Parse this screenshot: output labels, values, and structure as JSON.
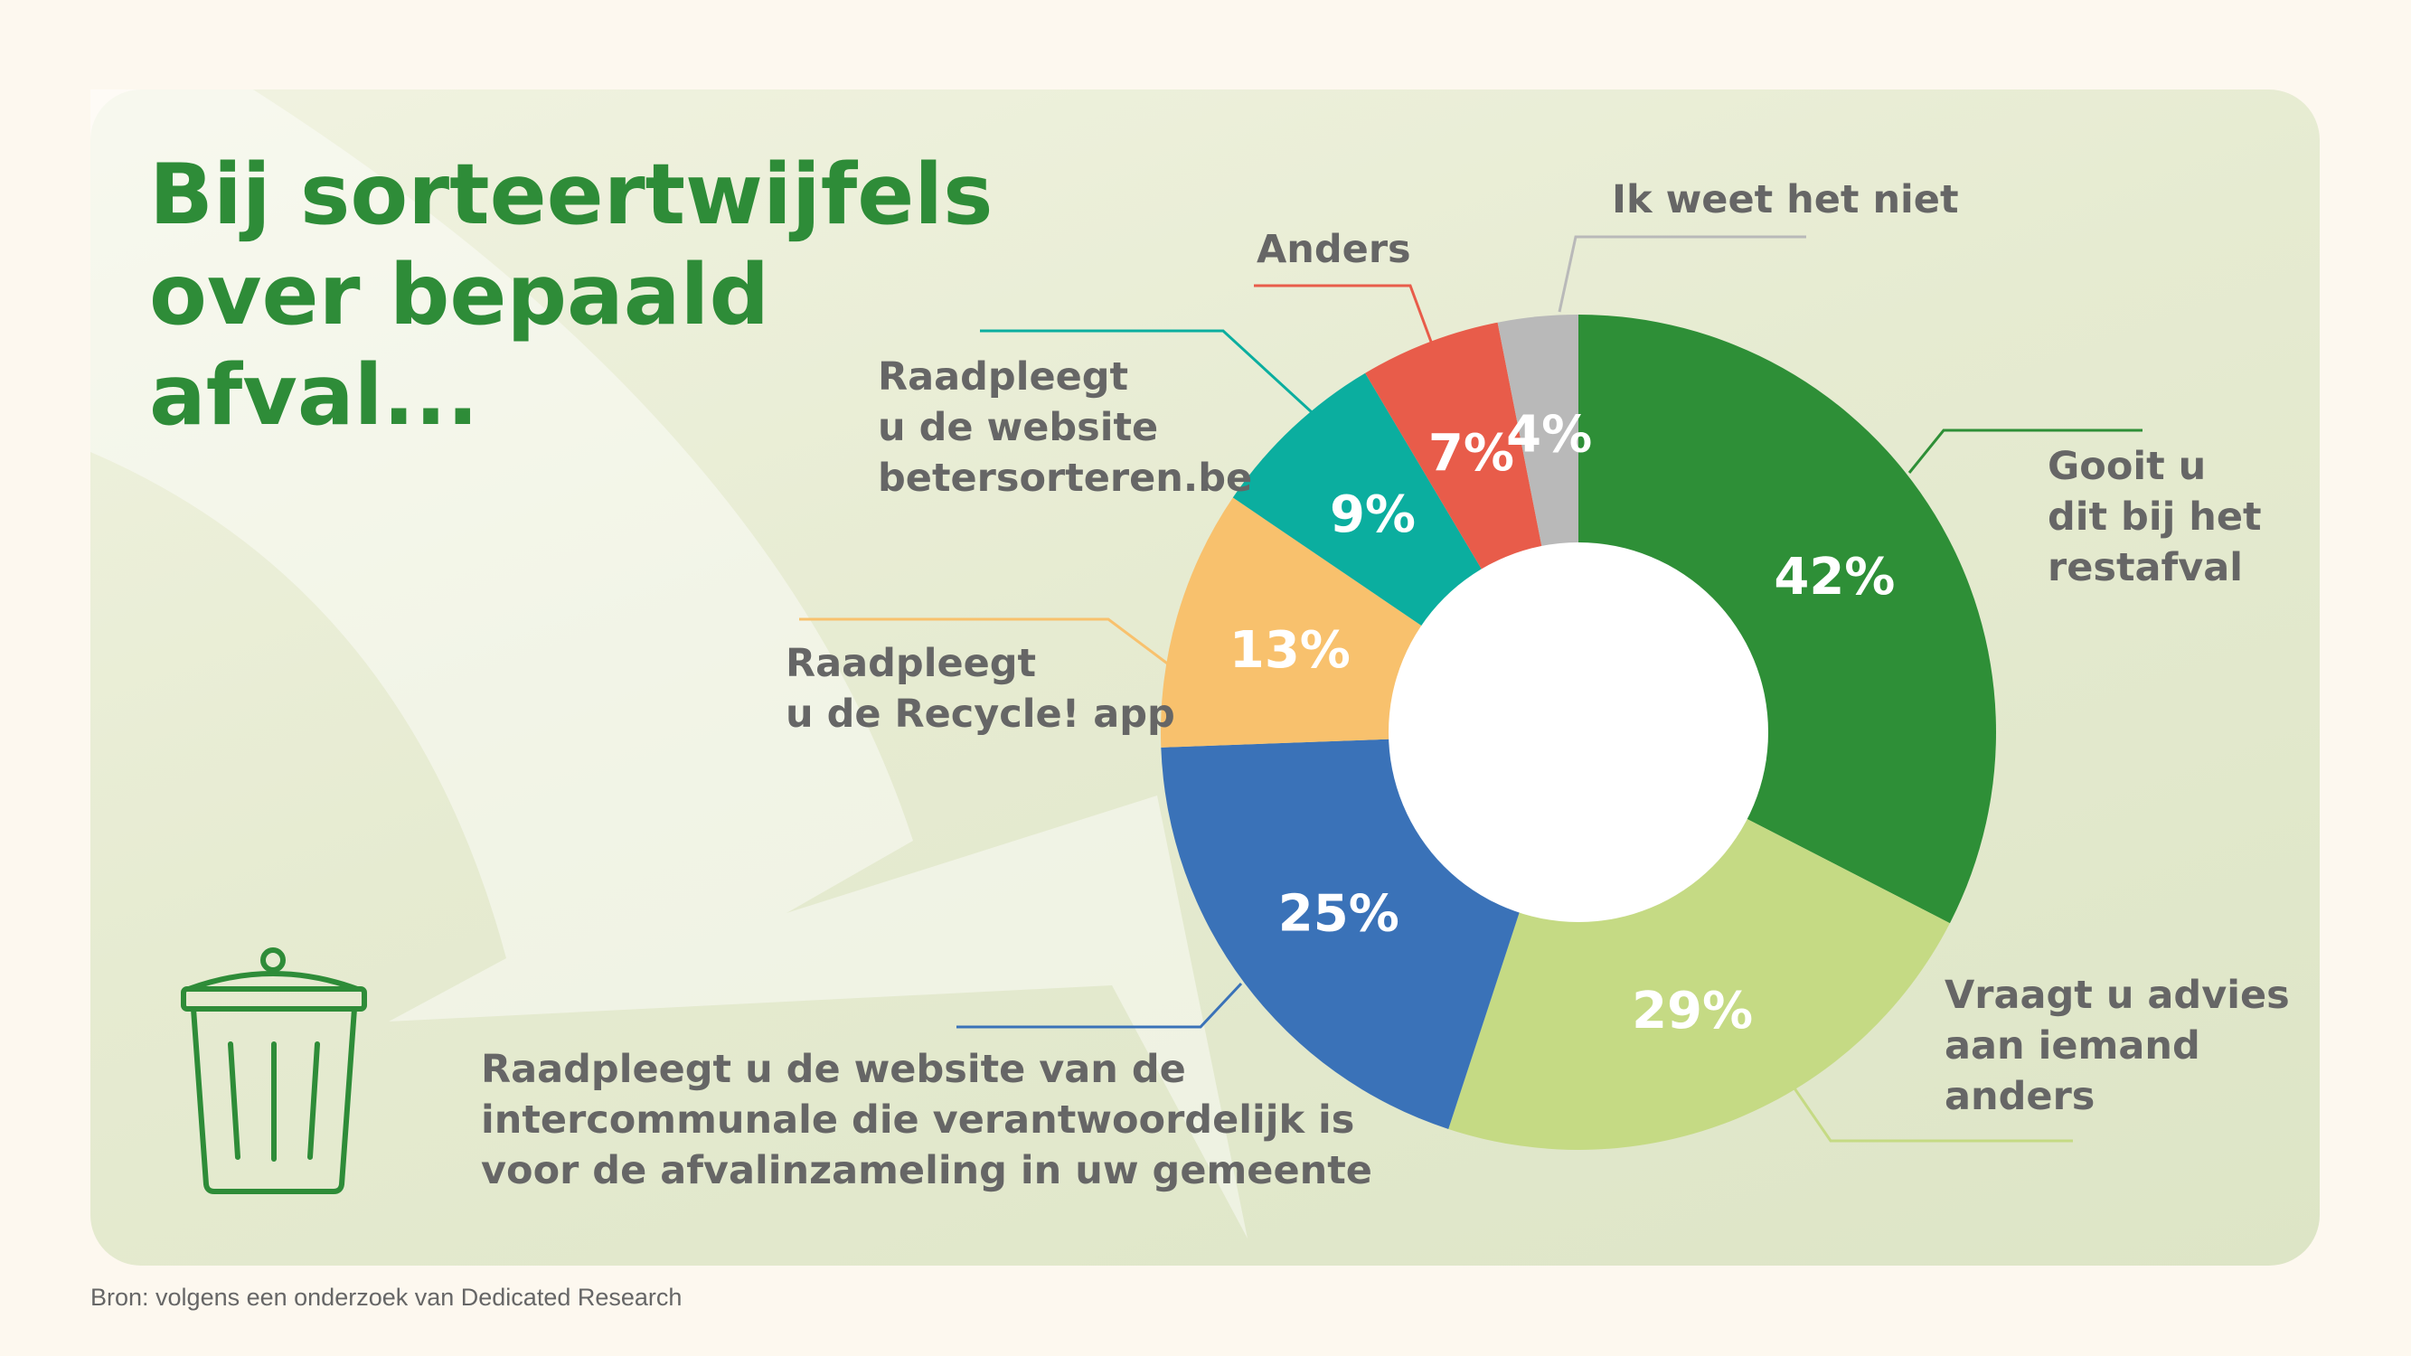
{
  "title": [
    "Bij sorteertwijfels",
    "over bepaald",
    "afval..."
  ],
  "source": "Bron: volgens een onderzoek van Dedicated Research",
  "chart_data": {
    "type": "donut",
    "start_angle_deg": 0,
    "direction": "clockwise",
    "slices": [
      {
        "value": 42,
        "value_label": "42%",
        "label_lines": [
          "Gooit u",
          "dit bij het",
          "restafval"
        ],
        "color": "#2e8f37",
        "value_text_color": "#ffffff"
      },
      {
        "value": 29,
        "value_label": "29%",
        "label_lines": [
          "Vraagt u advies",
          "aan iemand",
          "anders"
        ],
        "color": "#c5da84",
        "value_text_color": "#ffffff"
      },
      {
        "value": 25,
        "value_label": "25%",
        "label_lines": [
          "Raadpleegt u de website van de",
          "intercommunale die verantwoordelijk is",
          "voor de afvalinzameling in uw gemeente"
        ],
        "color": "#3a72b8",
        "value_text_color": "#ffffff"
      },
      {
        "value": 13,
        "value_label": "13%",
        "label_lines": [
          "Raadpleegt",
          "u de Recycle! app"
        ],
        "color": "#f8c16d",
        "value_text_color": "#ffffff"
      },
      {
        "value": 9,
        "value_label": "9%",
        "label_lines": [
          "Raadpleegt",
          "u de website",
          "betersorteren.be"
        ],
        "color": "#0bae9f",
        "value_text_color": "#ffffff"
      },
      {
        "value": 7,
        "value_label": "7%",
        "label_lines": [
          "Anders"
        ],
        "color": "#e85c4a",
        "value_text_color": "#ffffff"
      },
      {
        "value": 4,
        "value_label": "4%",
        "label_lines": [
          "Ik weet het niet"
        ],
        "color": "#b9b9b9",
        "value_text_color": "#ffffff"
      }
    ]
  },
  "colors": {
    "title": "#2e8c38",
    "label_text": "#666666",
    "background": "#fdf8ef",
    "icon": "#2e8c38"
  },
  "icon": "trash-can-icon"
}
